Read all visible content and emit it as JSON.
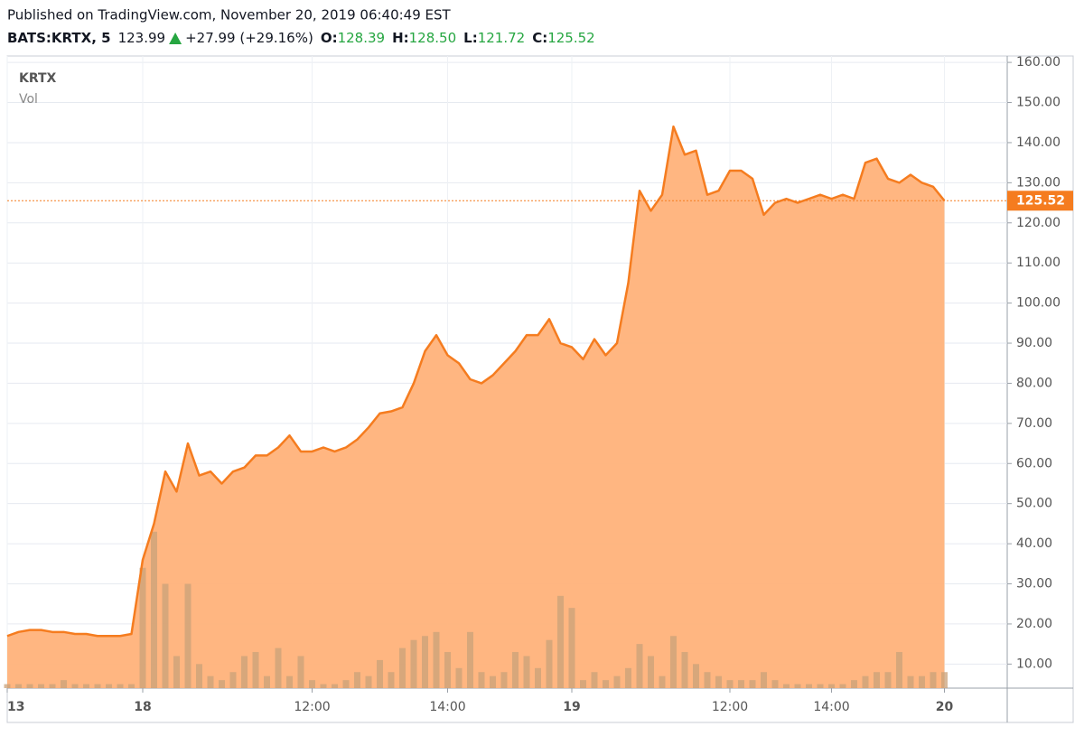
{
  "chart_data": {
    "type": "area",
    "header": {
      "published": "Published on TradingView.com, November 20, 2019 06:40:49 EST",
      "symbol": "BATS:KRTX, 5",
      "last": "123.99",
      "change": "+27.99 (+29.16%)",
      "o_label": "O:",
      "open": "128.39",
      "h_label": "H:",
      "high": "128.50",
      "l_label": "L:",
      "low": "121.72",
      "c_label": "C:",
      "close": "125.52"
    },
    "categories": [
      "13",
      null,
      null,
      null,
      null,
      null,
      null,
      null,
      null,
      null,
      null,
      null,
      "18",
      null,
      null,
      null,
      null,
      null,
      null,
      null,
      null,
      null,
      null,
      null,
      null,
      null,
      null,
      "12:00",
      null,
      null,
      null,
      null,
      null,
      null,
      null,
      null,
      null,
      null,
      null,
      "14:00",
      null,
      null,
      null,
      null,
      null,
      null,
      null,
      null,
      null,
      null,
      "19",
      null,
      null,
      null,
      null,
      null,
      null,
      null,
      null,
      null,
      null,
      null,
      null,
      null,
      "12:00",
      null,
      null,
      null,
      null,
      null,
      null,
      null,
      null,
      "14:00",
      null,
      null,
      null,
      null,
      null,
      null,
      null,
      null,
      null,
      "20"
    ],
    "series": [
      {
        "name": "KRTX",
        "color": "#f57c1f",
        "fill": "#ffb27a",
        "values": [
          17,
          18,
          18.5,
          18.5,
          18,
          18,
          17.5,
          17.5,
          17,
          17,
          17,
          17.5,
          36,
          45,
          58,
          53,
          65,
          57,
          58,
          55,
          58,
          59,
          62,
          62,
          64,
          67,
          63,
          63,
          64,
          63,
          64,
          66,
          69,
          72.5,
          73,
          74,
          80,
          88,
          92,
          87,
          85,
          81,
          80,
          82,
          85,
          88,
          92,
          92,
          96,
          90,
          89,
          86,
          91,
          87,
          90,
          105,
          128,
          123,
          127,
          144,
          137,
          138,
          127,
          128,
          133,
          133,
          131,
          122,
          125,
          126,
          125,
          126,
          127,
          126,
          127,
          126,
          135,
          136,
          131,
          130,
          132,
          130,
          129,
          125.52
        ]
      },
      {
        "name": "Vol",
        "color": "#c9a27a",
        "values": [
          5,
          5,
          5,
          5,
          5,
          6,
          5,
          5,
          5,
          5,
          5,
          5,
          34,
          43,
          30,
          12,
          30,
          10,
          7,
          6,
          8,
          12,
          13,
          7,
          14,
          7,
          12,
          6,
          5,
          5,
          6,
          8,
          7,
          11,
          8,
          14,
          16,
          17,
          18,
          13,
          9,
          18,
          8,
          7,
          8,
          13,
          12,
          9,
          16,
          27,
          24,
          6,
          8,
          6,
          7,
          9,
          15,
          12,
          7,
          17,
          13,
          10,
          8,
          7,
          6,
          6,
          6,
          8,
          6,
          5,
          5,
          5,
          5,
          5,
          5,
          6,
          7,
          8,
          8,
          13,
          7,
          7,
          8,
          8
        ]
      }
    ],
    "ylim": [
      4,
      161.6
    ],
    "yticks": [
      {
        "value": 10,
        "label": "10.00"
      },
      {
        "value": 20,
        "label": "20.00"
      },
      {
        "value": 30,
        "label": "30.00"
      },
      {
        "value": 40,
        "label": "40.00"
      },
      {
        "value": 50,
        "label": "50.00"
      },
      {
        "value": 60,
        "label": "60.00"
      },
      {
        "value": 70,
        "label": "70.00"
      },
      {
        "value": 80,
        "label": "80.00"
      },
      {
        "value": 90,
        "label": "90.00"
      },
      {
        "value": 100,
        "label": "100.00"
      },
      {
        "value": 110,
        "label": "110.00"
      },
      {
        "value": 120,
        "label": "120.00"
      },
      {
        "value": 130,
        "label": "130.00"
      },
      {
        "value": 140,
        "label": "140.00"
      },
      {
        "value": 150,
        "label": "150.00"
      },
      {
        "value": 160,
        "label": "160.00"
      }
    ],
    "grid": true
  }
}
